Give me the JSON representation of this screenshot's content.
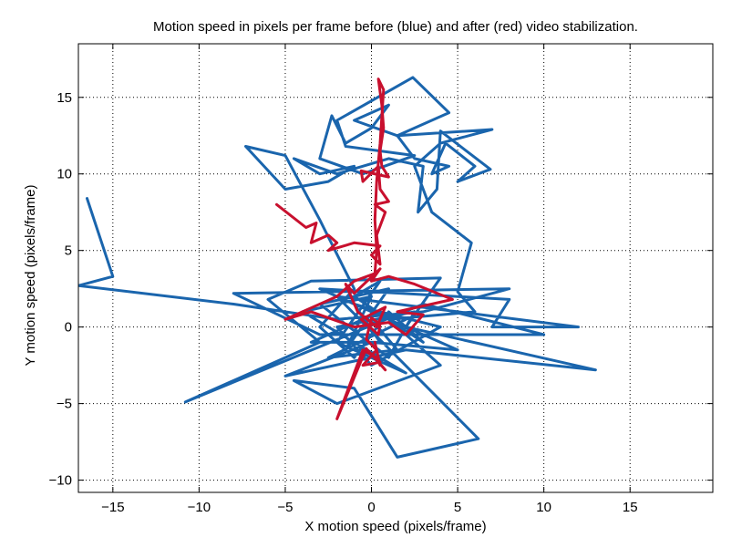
{
  "chart_data": {
    "type": "line",
    "title": "Motion speed in pixels per frame before (blue) and after (red) video stabilization.",
    "xlabel": "X motion speed (pixels/frame)",
    "ylabel": "Y motion speed (pixels/frame)",
    "xlim": [
      -17,
      19.8
    ],
    "ylim": [
      -10.8,
      18.5
    ],
    "xticks": [
      -15,
      -10,
      -5,
      0,
      5,
      10,
      15
    ],
    "yticks": [
      -10,
      -5,
      0,
      5,
      10,
      15
    ],
    "grid": true,
    "series": [
      {
        "color": "#1a65ad",
        "points": [
          [
            -16.5,
            8.4
          ],
          [
            -15,
            3.3
          ],
          [
            -17,
            2.7
          ],
          [
            -8,
            1.5
          ],
          [
            -2,
            0.5
          ],
          [
            3,
            1
          ],
          [
            8,
            2.5
          ],
          [
            -8,
            2.2
          ],
          [
            -3,
            -0.5
          ],
          [
            10,
            -0.5
          ],
          [
            3,
            1.5
          ],
          [
            -10.8,
            -4.9
          ],
          [
            -3,
            -1
          ],
          [
            -6,
            1.8
          ],
          [
            -3.5,
            3
          ],
          [
            4,
            3.2
          ],
          [
            2,
            0
          ],
          [
            13,
            -2.8
          ],
          [
            2,
            -1.5
          ],
          [
            -5,
            -3.2
          ],
          [
            0,
            -1
          ],
          [
            5,
            -1.5
          ],
          [
            -3,
            2.5
          ],
          [
            8,
            1.8
          ],
          [
            7,
            0
          ],
          [
            12,
            0
          ],
          [
            -2,
            2
          ],
          [
            6.2,
            -7.3
          ],
          [
            1.5,
            -8.5
          ],
          [
            -1,
            -4
          ],
          [
            -4.5,
            -3.5
          ],
          [
            -2,
            -5
          ],
          [
            4,
            -2.5
          ],
          [
            1,
            0.5
          ],
          [
            6,
            1
          ],
          [
            5,
            2.3
          ],
          [
            5.8,
            5.5
          ],
          [
            3.5,
            7.5
          ],
          [
            2.5,
            10.5
          ],
          [
            4,
            12
          ],
          [
            7,
            12.9
          ],
          [
            1.5,
            12.5
          ],
          [
            4.5,
            14
          ],
          [
            2.4,
            16.3
          ],
          [
            -2,
            13.5
          ],
          [
            -1.5,
            11.8
          ],
          [
            2.5,
            11.2
          ],
          [
            -0.5,
            10
          ],
          [
            -3,
            11
          ],
          [
            -2.3,
            13.8
          ],
          [
            -1.5,
            12
          ],
          [
            0,
            13
          ],
          [
            1,
            14.5
          ],
          [
            -1,
            13.5
          ],
          [
            1.5,
            12.5
          ],
          [
            2.5,
            11
          ],
          [
            4.5,
            10.5
          ],
          [
            3.5,
            10
          ],
          [
            4.3,
            12
          ],
          [
            6,
            10.5
          ],
          [
            5,
            9.5
          ],
          [
            6.9,
            10.3
          ],
          [
            4,
            12.8
          ],
          [
            3.8,
            9
          ],
          [
            2.7,
            7.5
          ],
          [
            3,
            10.5
          ],
          [
            1,
            11
          ],
          [
            -2,
            10
          ],
          [
            -4.5,
            11
          ],
          [
            -3,
            10
          ],
          [
            -1,
            10.5
          ],
          [
            -2.5,
            9.5
          ],
          [
            -5,
            9
          ],
          [
            -7.3,
            11.8
          ],
          [
            -5,
            11.2
          ],
          [
            -3,
            7
          ],
          [
            -1,
            2.5
          ],
          [
            -3,
            0
          ],
          [
            -1,
            -2
          ],
          [
            1,
            1
          ],
          [
            3,
            -1
          ],
          [
            -1,
            2
          ],
          [
            0.5,
            3
          ],
          [
            -2,
            -1
          ],
          [
            2,
            -3
          ],
          [
            -4,
            1
          ],
          [
            0,
            2
          ],
          [
            -1.5,
            -1.5
          ],
          [
            1,
            2.5
          ],
          [
            -3,
            1.5
          ],
          [
            1,
            -2
          ],
          [
            2.5,
            1
          ],
          [
            -2,
            0
          ],
          [
            0,
            -2.5
          ],
          [
            4,
            0
          ],
          [
            0.5,
            1
          ],
          [
            -3.5,
            -1
          ],
          [
            0.5,
            -1
          ],
          [
            -1,
            1.5
          ],
          [
            2,
            0.5
          ],
          [
            -2.5,
            -2
          ],
          [
            1.5,
            -1.5
          ],
          [
            0,
            0.5
          ]
        ]
      },
      {
        "color": "#c8102e",
        "points": [
          [
            -5.5,
            8
          ],
          [
            -3.8,
            6.5
          ],
          [
            -3.2,
            6.8
          ],
          [
            -3.5,
            5.5
          ],
          [
            -2.5,
            6
          ],
          [
            -2,
            5.5
          ],
          [
            -2.5,
            5
          ],
          [
            -1,
            5.5
          ],
          [
            0.5,
            5.3
          ],
          [
            0,
            4.7
          ],
          [
            0.5,
            4.1
          ],
          [
            0.3,
            6
          ],
          [
            0.8,
            7.5
          ],
          [
            0.2,
            8
          ],
          [
            1,
            8.2
          ],
          [
            0.5,
            9
          ],
          [
            0.4,
            10.5
          ],
          [
            -0.5,
            9.5
          ],
          [
            -0.6,
            10.2
          ],
          [
            1,
            9.8
          ],
          [
            0.6,
            10.5
          ],
          [
            0.5,
            11.5
          ],
          [
            0.7,
            13
          ],
          [
            0.6,
            14.5
          ],
          [
            0.4,
            16.2
          ],
          [
            0.7,
            15.5
          ],
          [
            0.5,
            12
          ],
          [
            0.3,
            9.5
          ],
          [
            0.2,
            7
          ],
          [
            0.3,
            5
          ],
          [
            0.2,
            3.5
          ],
          [
            -1,
            3
          ],
          [
            -2,
            2
          ],
          [
            -3,
            1.5
          ],
          [
            -5,
            0.5
          ],
          [
            -3.5,
            1
          ],
          [
            -1,
            0
          ],
          [
            1,
            0.3
          ],
          [
            2,
            -0.5
          ],
          [
            3,
            0.8
          ],
          [
            1.5,
            1
          ],
          [
            4.7,
            1.8
          ],
          [
            2.5,
            2.8
          ],
          [
            1,
            3.3
          ],
          [
            0,
            3
          ],
          [
            0.5,
            3.8
          ],
          [
            -1,
            2.2
          ],
          [
            -1.5,
            2.8
          ],
          [
            -0.8,
            1
          ],
          [
            0.3,
            0
          ],
          [
            0.8,
            1.3
          ],
          [
            -0.6,
            0.5
          ],
          [
            0.4,
            -0.5
          ],
          [
            0.5,
            0.2
          ],
          [
            0,
            0.6
          ],
          [
            -0.3,
            -0.8
          ],
          [
            0.3,
            -1.5
          ],
          [
            -0.5,
            -2.5
          ],
          [
            0.5,
            -2.3
          ],
          [
            0.2,
            -2
          ],
          [
            0.8,
            -2.8
          ],
          [
            -0.3,
            -1.4
          ],
          [
            -2,
            -6
          ],
          [
            -1,
            -3
          ],
          [
            -0.5,
            -1.5
          ],
          [
            0.3,
            -2
          ],
          [
            0.5,
            -2.5
          ],
          [
            0.2,
            -1
          ]
        ]
      }
    ]
  }
}
